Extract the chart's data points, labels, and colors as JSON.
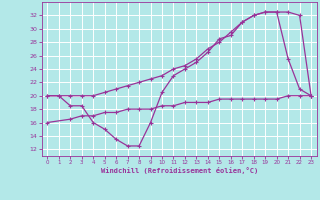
{
  "background_color": "#b3e8e8",
  "grid_color": "#ffffff",
  "line_color": "#993399",
  "xlabel": "Windchill (Refroidissement éolien,°C)",
  "xlim": [
    -0.5,
    23.5
  ],
  "ylim": [
    11,
    34
  ],
  "yticks": [
    12,
    14,
    16,
    18,
    20,
    22,
    24,
    26,
    28,
    30,
    32
  ],
  "xticks": [
    0,
    1,
    2,
    3,
    4,
    5,
    6,
    7,
    8,
    9,
    10,
    11,
    12,
    13,
    14,
    15,
    16,
    17,
    18,
    19,
    20,
    21,
    22,
    23
  ],
  "curve1_x": [
    0,
    1,
    2,
    3,
    4,
    5,
    6,
    7,
    8,
    9,
    10,
    11,
    12,
    13,
    14,
    15,
    16,
    17,
    18,
    19,
    20,
    21,
    22,
    23
  ],
  "curve1_y": [
    20,
    20,
    18.5,
    18.5,
    16,
    15,
    13.5,
    12.5,
    12.5,
    16,
    20.5,
    23,
    24,
    25,
    26.5,
    28.5,
    29,
    31,
    32,
    32.5,
    32.5,
    25.5,
    21,
    20
  ],
  "curve2_x": [
    0,
    1,
    2,
    3,
    4,
    5,
    6,
    7,
    8,
    9,
    10,
    11,
    12,
    13,
    14,
    15,
    16,
    17,
    18,
    19,
    20,
    21,
    22,
    23
  ],
  "curve2_y": [
    20,
    20,
    20,
    20,
    20,
    20.5,
    21,
    21.5,
    22,
    22.5,
    23,
    24,
    24.5,
    25.5,
    27,
    28,
    29.5,
    31,
    32,
    32.5,
    32.5,
    32.5,
    32,
    20
  ],
  "curve3_x": [
    0,
    2,
    3,
    4,
    5,
    6,
    7,
    8,
    9,
    10,
    11,
    12,
    13,
    14,
    15,
    16,
    17,
    18,
    19,
    20,
    21,
    22,
    23
  ],
  "curve3_y": [
    16,
    16.5,
    17,
    17,
    17.5,
    17.5,
    18,
    18,
    18,
    18.5,
    18.5,
    19,
    19,
    19,
    19.5,
    19.5,
    19.5,
    19.5,
    19.5,
    19.5,
    20,
    20,
    20
  ],
  "marker": "+"
}
